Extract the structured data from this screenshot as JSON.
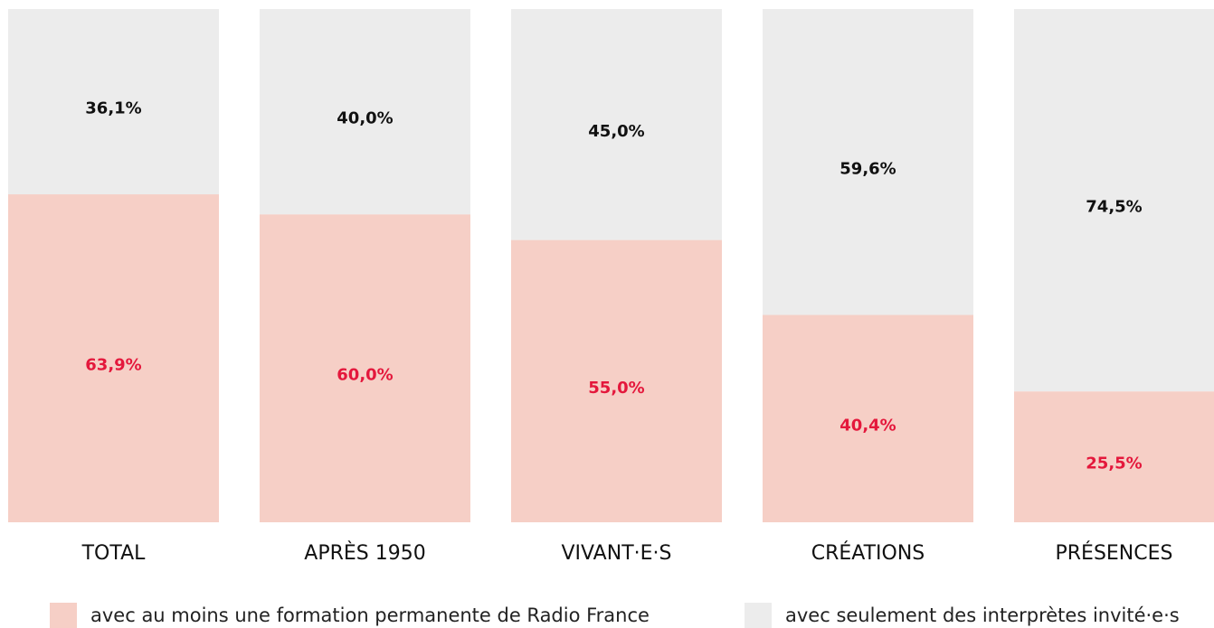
{
  "chart_data": {
    "type": "stacked_bar",
    "categories": [
      "TOTAL",
      "APRÈS 1950",
      "VIVANT·E·S",
      "CRÉATIONS",
      "PRÉSENCES"
    ],
    "ylim": [
      0,
      100
    ],
    "series": [
      {
        "name": "avec au moins une formation permanente de Radio France",
        "color": "#f6cfc6",
        "label_color": "#e4183c",
        "values": [
          63.9,
          60.0,
          55.0,
          40.4,
          25.5
        ],
        "value_labels": [
          "63,9%",
          "60,0%",
          "55,0%",
          "40,4%",
          "25,5%"
        ]
      },
      {
        "name": "avec seulement des interprètes invité·e·s",
        "color": "#ececec",
        "label_color": "#111111",
        "values": [
          36.1,
          40.0,
          45.0,
          59.6,
          74.5
        ],
        "value_labels": [
          "36,1%",
          "40,0%",
          "45,0%",
          "59,6%",
          "74,5%"
        ]
      }
    ]
  }
}
